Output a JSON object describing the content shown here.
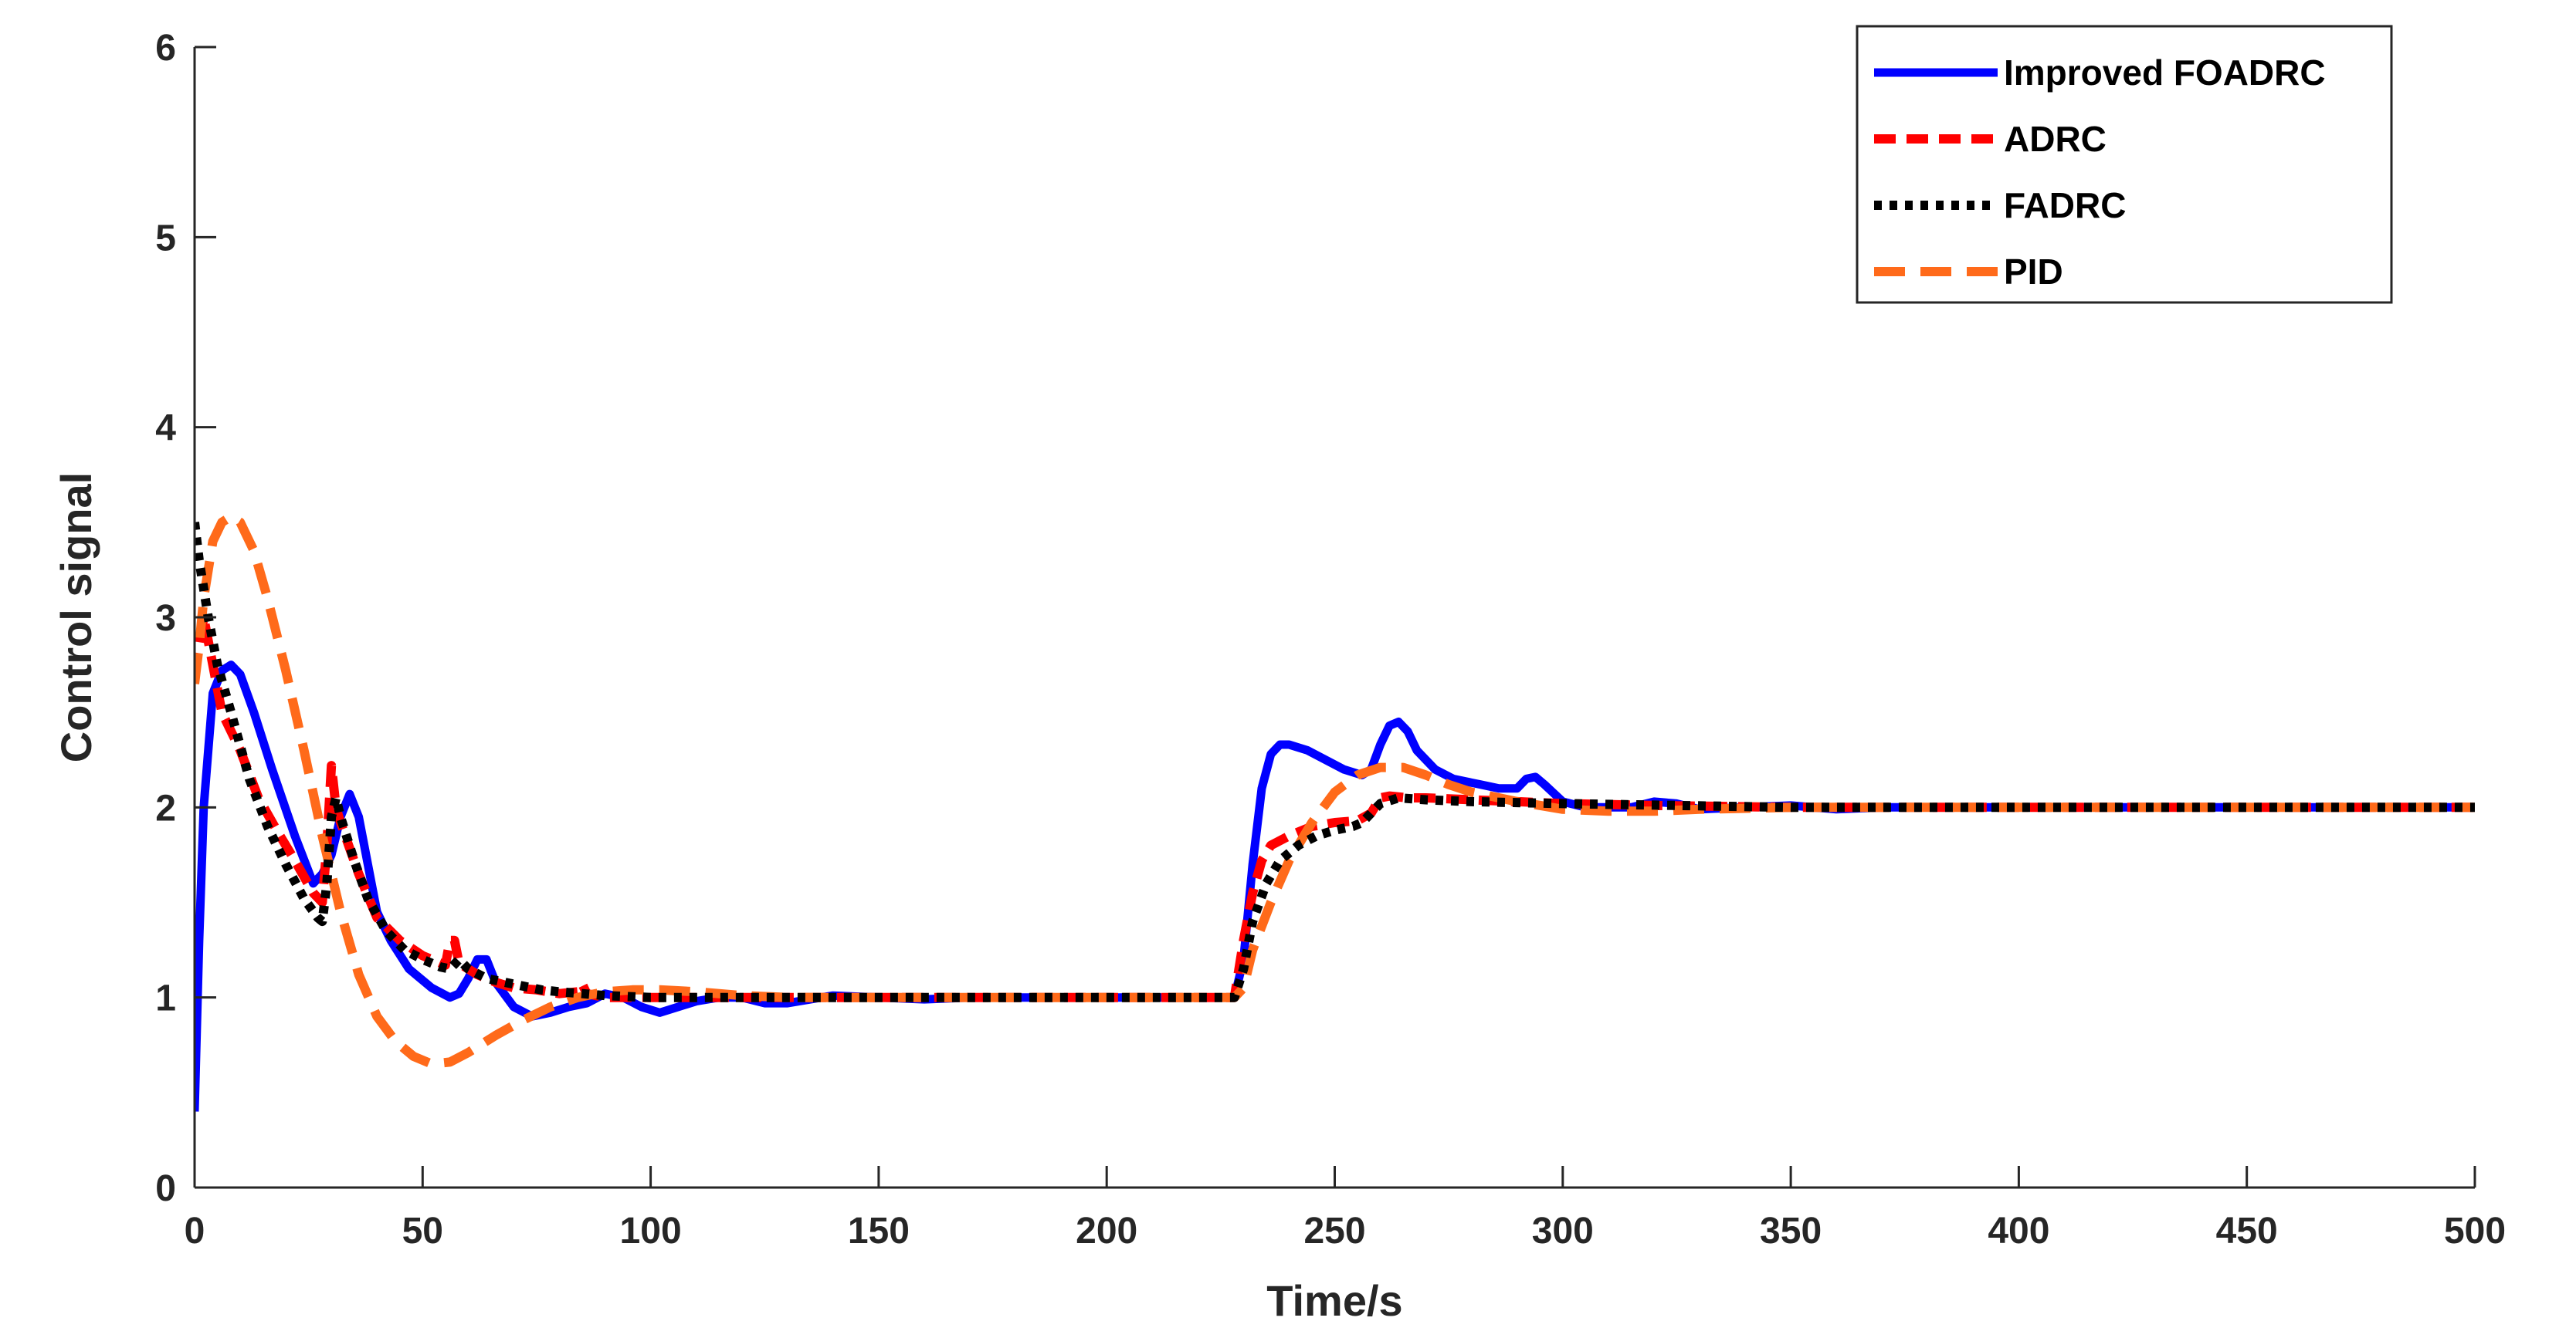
{
  "chart_data": {
    "type": "line",
    "xlabel": "Time/s",
    "ylabel": "Control signal",
    "xlim": [
      0,
      500
    ],
    "ylim": [
      0,
      6
    ],
    "xticks": [
      0,
      50,
      100,
      150,
      200,
      250,
      300,
      350,
      400,
      450,
      500
    ],
    "yticks": [
      0,
      1,
      2,
      3,
      4,
      5,
      6
    ],
    "grid": false,
    "legend_position": "top-right",
    "series": [
      {
        "name": "Improved FOADRC",
        "color": "#0000ff",
        "style": "solid",
        "points": [
          [
            0,
            0.4
          ],
          [
            1,
            1.3
          ],
          [
            2,
            2.0
          ],
          [
            4,
            2.6
          ],
          [
            6,
            2.72
          ],
          [
            8,
            2.75
          ],
          [
            10,
            2.7
          ],
          [
            13,
            2.5
          ],
          [
            17,
            2.2
          ],
          [
            22,
            1.85
          ],
          [
            26,
            1.6
          ],
          [
            28,
            1.65
          ],
          [
            30,
            1.75
          ],
          [
            32,
            1.95
          ],
          [
            34,
            2.07
          ],
          [
            36,
            1.95
          ],
          [
            38,
            1.7
          ],
          [
            40,
            1.45
          ],
          [
            43,
            1.3
          ],
          [
            47,
            1.15
          ],
          [
            52,
            1.05
          ],
          [
            56,
            1.0
          ],
          [
            58,
            1.02
          ],
          [
            60,
            1.1
          ],
          [
            62,
            1.2
          ],
          [
            64,
            1.2
          ],
          [
            66,
            1.08
          ],
          [
            70,
            0.95
          ],
          [
            74,
            0.9
          ],
          [
            78,
            0.92
          ],
          [
            82,
            0.95
          ],
          [
            86,
            0.97
          ],
          [
            90,
            1.02
          ],
          [
            94,
            1.0
          ],
          [
            98,
            0.95
          ],
          [
            102,
            0.92
          ],
          [
            106,
            0.95
          ],
          [
            110,
            0.98
          ],
          [
            115,
            1.0
          ],
          [
            120,
            1.0
          ],
          [
            125,
            0.97
          ],
          [
            130,
            0.97
          ],
          [
            140,
            1.01
          ],
          [
            150,
            1.0
          ],
          [
            160,
            0.99
          ],
          [
            170,
            1.0
          ],
          [
            180,
            1.0
          ],
          [
            200,
            1.0
          ],
          [
            225,
            1.0
          ],
          [
            228,
            1.0
          ],
          [
            230,
            1.2
          ],
          [
            232,
            1.7
          ],
          [
            234,
            2.1
          ],
          [
            236,
            2.28
          ],
          [
            238,
            2.33
          ],
          [
            240,
            2.33
          ],
          [
            244,
            2.3
          ],
          [
            248,
            2.25
          ],
          [
            252,
            2.2
          ],
          [
            256,
            2.17
          ],
          [
            258,
            2.2
          ],
          [
            260,
            2.33
          ],
          [
            262,
            2.43
          ],
          [
            264,
            2.45
          ],
          [
            266,
            2.4
          ],
          [
            268,
            2.3
          ],
          [
            272,
            2.2
          ],
          [
            276,
            2.15
          ],
          [
            282,
            2.12
          ],
          [
            286,
            2.1
          ],
          [
            290,
            2.1
          ],
          [
            292,
            2.15
          ],
          [
            294,
            2.16
          ],
          [
            296,
            2.12
          ],
          [
            300,
            2.03
          ],
          [
            305,
            2.0
          ],
          [
            310,
            2.0
          ],
          [
            315,
            2.0
          ],
          [
            320,
            2.03
          ],
          [
            325,
            2.02
          ],
          [
            330,
            1.99
          ],
          [
            340,
            2.0
          ],
          [
            350,
            2.01
          ],
          [
            360,
            1.99
          ],
          [
            370,
            2.0
          ],
          [
            380,
            2.0
          ],
          [
            400,
            2.0
          ],
          [
            450,
            2.0
          ],
          [
            500,
            2.0
          ]
        ]
      },
      {
        "name": "ADRC",
        "color": "#ff0000",
        "style": "dash",
        "points": [
          [
            0,
            2.7
          ],
          [
            2,
            3.0
          ],
          [
            4,
            2.75
          ],
          [
            6,
            2.5
          ],
          [
            10,
            2.3
          ],
          [
            14,
            2.05
          ],
          [
            18,
            1.88
          ],
          [
            22,
            1.72
          ],
          [
            26,
            1.55
          ],
          [
            28,
            1.5
          ],
          [
            29,
            1.8
          ],
          [
            30,
            2.22
          ],
          [
            31,
            2.0
          ],
          [
            32,
            1.92
          ],
          [
            36,
            1.65
          ],
          [
            40,
            1.42
          ],
          [
            45,
            1.3
          ],
          [
            50,
            1.22
          ],
          [
            55,
            1.17
          ],
          [
            56,
            1.3
          ],
          [
            57,
            1.3
          ],
          [
            58,
            1.18
          ],
          [
            62,
            1.12
          ],
          [
            66,
            1.08
          ],
          [
            70,
            1.05
          ],
          [
            75,
            1.04
          ],
          [
            80,
            1.02
          ],
          [
            84,
            1.03
          ],
          [
            85,
            1.07
          ],
          [
            86,
            1.02
          ],
          [
            90,
            1.0
          ],
          [
            100,
            1.0
          ],
          [
            120,
            1.0
          ],
          [
            150,
            1.0
          ],
          [
            200,
            1.0
          ],
          [
            227,
            1.0
          ],
          [
            228,
            1.0
          ],
          [
            230,
            1.3
          ],
          [
            232,
            1.55
          ],
          [
            234,
            1.72
          ],
          [
            236,
            1.8
          ],
          [
            240,
            1.85
          ],
          [
            245,
            1.9
          ],
          [
            250,
            1.92
          ],
          [
            255,
            1.93
          ],
          [
            258,
            1.97
          ],
          [
            260,
            2.05
          ],
          [
            262,
            2.06
          ],
          [
            266,
            2.05
          ],
          [
            270,
            2.05
          ],
          [
            280,
            2.04
          ],
          [
            290,
            2.03
          ],
          [
            300,
            2.02
          ],
          [
            320,
            2.01
          ],
          [
            350,
            2.0
          ],
          [
            400,
            2.0
          ],
          [
            450,
            2.0
          ],
          [
            500,
            2.0
          ]
        ]
      },
      {
        "name": "FADRC",
        "color": "#000000",
        "style": "dot",
        "points": [
          [
            0,
            3.5
          ],
          [
            1,
            3.3
          ],
          [
            3,
            3.0
          ],
          [
            5,
            2.75
          ],
          [
            8,
            2.5
          ],
          [
            12,
            2.15
          ],
          [
            16,
            1.9
          ],
          [
            20,
            1.7
          ],
          [
            24,
            1.52
          ],
          [
            27,
            1.42
          ],
          [
            28,
            1.4
          ],
          [
            29,
            1.6
          ],
          [
            30,
            1.95
          ],
          [
            31,
            2.05
          ],
          [
            32,
            1.95
          ],
          [
            35,
            1.72
          ],
          [
            38,
            1.52
          ],
          [
            42,
            1.35
          ],
          [
            46,
            1.25
          ],
          [
            50,
            1.2
          ],
          [
            54,
            1.16
          ],
          [
            56,
            1.15
          ],
          [
            58,
            1.2
          ],
          [
            60,
            1.15
          ],
          [
            64,
            1.1
          ],
          [
            68,
            1.08
          ],
          [
            72,
            1.06
          ],
          [
            76,
            1.04
          ],
          [
            80,
            1.03
          ],
          [
            85,
            1.02
          ],
          [
            90,
            1.01
          ],
          [
            100,
            1.0
          ],
          [
            120,
            1.0
          ],
          [
            150,
            1.0
          ],
          [
            200,
            1.0
          ],
          [
            227,
            1.0
          ],
          [
            228,
            1.0
          ],
          [
            230,
            1.15
          ],
          [
            232,
            1.4
          ],
          [
            235,
            1.6
          ],
          [
            238,
            1.72
          ],
          [
            242,
            1.8
          ],
          [
            246,
            1.85
          ],
          [
            250,
            1.88
          ],
          [
            254,
            1.9
          ],
          [
            256,
            1.92
          ],
          [
            258,
            1.97
          ],
          [
            260,
            2.02
          ],
          [
            264,
            2.05
          ],
          [
            270,
            2.04
          ],
          [
            280,
            2.03
          ],
          [
            300,
            2.02
          ],
          [
            350,
            2.0
          ],
          [
            400,
            2.0
          ],
          [
            450,
            2.0
          ],
          [
            500,
            2.0
          ]
        ]
      },
      {
        "name": "PID",
        "color": "#ff6a1a",
        "style": "longdash",
        "points": [
          [
            0,
            2.65
          ],
          [
            1,
            2.85
          ],
          [
            2,
            3.1
          ],
          [
            4,
            3.4
          ],
          [
            6,
            3.5
          ],
          [
            8,
            3.53
          ],
          [
            10,
            3.5
          ],
          [
            13,
            3.35
          ],
          [
            16,
            3.1
          ],
          [
            20,
            2.72
          ],
          [
            24,
            2.3
          ],
          [
            28,
            1.85
          ],
          [
            32,
            1.45
          ],
          [
            36,
            1.12
          ],
          [
            40,
            0.9
          ],
          [
            44,
            0.77
          ],
          [
            48,
            0.69
          ],
          [
            52,
            0.65
          ],
          [
            56,
            0.66
          ],
          [
            60,
            0.71
          ],
          [
            66,
            0.8
          ],
          [
            72,
            0.88
          ],
          [
            78,
            0.95
          ],
          [
            84,
            1.0
          ],
          [
            90,
            1.03
          ],
          [
            96,
            1.04
          ],
          [
            102,
            1.04
          ],
          [
            110,
            1.03
          ],
          [
            120,
            1.01
          ],
          [
            130,
            1.0
          ],
          [
            150,
            1.0
          ],
          [
            200,
            1.0
          ],
          [
            227,
            1.0
          ],
          [
            228,
            1.0
          ],
          [
            230,
            1.05
          ],
          [
            232,
            1.25
          ],
          [
            236,
            1.5
          ],
          [
            240,
            1.72
          ],
          [
            245,
            1.92
          ],
          [
            250,
            2.08
          ],
          [
            255,
            2.17
          ],
          [
            260,
            2.21
          ],
          [
            265,
            2.21
          ],
          [
            270,
            2.17
          ],
          [
            275,
            2.12
          ],
          [
            280,
            2.08
          ],
          [
            290,
            2.03
          ],
          [
            300,
            1.99
          ],
          [
            310,
            1.98
          ],
          [
            320,
            1.98
          ],
          [
            330,
            1.99
          ],
          [
            350,
            2.0
          ],
          [
            400,
            2.0
          ],
          [
            450,
            2.0
          ],
          [
            500,
            2.0
          ]
        ]
      }
    ]
  }
}
